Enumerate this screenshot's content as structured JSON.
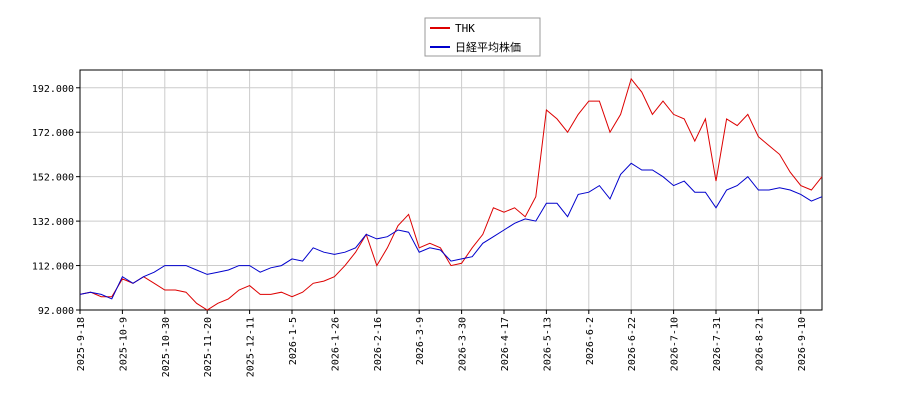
{
  "chart_data": {
    "type": "line",
    "categories": [
      "2025-9-18",
      null,
      null,
      null,
      "2025-10-9",
      null,
      null,
      null,
      "2025-10-30",
      null,
      null,
      null,
      "2025-11-20",
      null,
      null,
      null,
      "2025-12-11",
      null,
      null,
      null,
      "2026-1-5",
      null,
      null,
      null,
      "2026-1-26",
      null,
      null,
      null,
      "2026-2-16",
      null,
      null,
      null,
      "2026-3-9",
      null,
      null,
      null,
      "2026-3-30",
      null,
      null,
      null,
      "2026-4-17",
      null,
      null,
      null,
      "2026-5-13",
      null,
      null,
      null,
      "2026-6-2",
      null,
      null,
      null,
      "2026-6-22",
      null,
      null,
      null,
      "2026-7-10",
      null,
      null,
      null,
      "2026-7-31",
      null,
      null,
      null,
      "2026-8-21",
      null,
      null,
      null,
      "2026-9-10",
      null,
      null
    ],
    "series": [
      {
        "name": "THK",
        "color": "#dd0000",
        "values": [
          99,
          100,
          98,
          98,
          106,
          104,
          107,
          104,
          101,
          101,
          100,
          95,
          92,
          95,
          97,
          101,
          103,
          99,
          99,
          100,
          98,
          100,
          104,
          105,
          107,
          112,
          118,
          126,
          112,
          120,
          130,
          135,
          120,
          122,
          120,
          112,
          113,
          120,
          126,
          138,
          136,
          138,
          134,
          143,
          182,
          178,
          172,
          180,
          186,
          186,
          172,
          180,
          196,
          190,
          180,
          186,
          180,
          178,
          168,
          178,
          150,
          178,
          175,
          180,
          170,
          166,
          162,
          154,
          148,
          146,
          152
        ]
      },
      {
        "name": "日経平均株価",
        "color": "#0000cc",
        "values": [
          99,
          100,
          99,
          97,
          107,
          104,
          107,
          109,
          112,
          112,
          112,
          110,
          108,
          109,
          110,
          112,
          112,
          109,
          111,
          112,
          115,
          114,
          120,
          118,
          117,
          118,
          120,
          126,
          124,
          125,
          128,
          127,
          118,
          120,
          119,
          114,
          115,
          116,
          122,
          125,
          128,
          131,
          133,
          132,
          140,
          140,
          134,
          144,
          145,
          148,
          142,
          153,
          158,
          155,
          155,
          152,
          148,
          150,
          145,
          145,
          138,
          146,
          148,
          152,
          146,
          146,
          147,
          146,
          144,
          141,
          143
        ]
      }
    ],
    "ylim": [
      92,
      200
    ],
    "yticks": [
      {
        "value": 92,
        "label": "92.000"
      },
      {
        "value": 112,
        "label": "112.000"
      },
      {
        "value": 132,
        "label": "132.000"
      },
      {
        "value": 152,
        "label": "152.000"
      },
      {
        "value": 172,
        "label": "172.000"
      },
      {
        "value": 192,
        "label": "192.000"
      }
    ],
    "grid": true,
    "legend": "top"
  }
}
